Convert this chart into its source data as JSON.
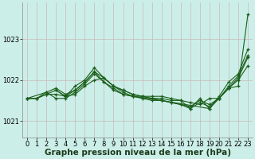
{
  "background_color": "#cceee8",
  "plot_bg_color": "#cceee8",
  "grid_color_major": "#c8b8b8",
  "line_color": "#1a5e1a",
  "xlabel": "Graphe pression niveau de la mer (hPa)",
  "xlabel_fontsize": 7.5,
  "tick_fontsize": 6,
  "ylim": [
    1020.6,
    1023.9
  ],
  "xlim": [
    -0.5,
    23.5
  ],
  "yticks": [
    1021,
    1022,
    1023
  ],
  "xticks": [
    0,
    1,
    2,
    3,
    4,
    5,
    6,
    7,
    8,
    9,
    10,
    11,
    12,
    13,
    14,
    15,
    16,
    17,
    18,
    19,
    20,
    21,
    22,
    23
  ],
  "series": [
    {
      "x": [
        0,
        1,
        2,
        3,
        4,
        5,
        6,
        7,
        8,
        9,
        10,
        11,
        12,
        13,
        14,
        15,
        16,
        17,
        18,
        19,
        20,
        21,
        22,
        23
      ],
      "y": [
        1021.55,
        1021.55,
        1021.65,
        1021.65,
        1021.6,
        1021.65,
        1021.85,
        1022.0,
        1022.05,
        1021.85,
        1021.75,
        1021.65,
        1021.6,
        1021.55,
        1021.55,
        1021.5,
        1021.5,
        1021.45,
        1021.4,
        1021.55,
        1021.55,
        1021.8,
        1021.85,
        1023.6
      ],
      "markers": [
        0,
        1,
        2,
        3,
        4,
        5,
        6,
        7,
        8,
        9,
        10,
        11,
        12,
        13,
        14,
        15,
        16,
        17,
        18,
        19,
        20,
        21,
        22,
        23
      ]
    },
    {
      "x": [
        0,
        1,
        2,
        3,
        4,
        5,
        6,
        7,
        8,
        9,
        10,
        11,
        12,
        13,
        14,
        15,
        16,
        17,
        18,
        19,
        20,
        21,
        22,
        23
      ],
      "y": [
        1021.55,
        1021.55,
        1021.65,
        1021.75,
        1021.6,
        1021.85,
        1022.0,
        1022.3,
        1022.05,
        1021.85,
        1021.7,
        1021.6,
        1021.55,
        1021.5,
        1021.5,
        1021.45,
        1021.4,
        1021.35,
        1021.5,
        1021.4,
        1021.55,
        1021.8,
        1022.0,
        1022.35
      ],
      "markers": [
        0,
        1,
        2,
        3,
        4,
        5,
        6,
        7,
        8,
        9,
        10,
        11,
        12,
        13,
        14,
        15,
        16,
        17,
        18,
        19,
        20,
        21,
        22,
        23
      ]
    },
    {
      "x": [
        0,
        1,
        2,
        3,
        4,
        5,
        6,
        7,
        8,
        9,
        10,
        11,
        12,
        13,
        14,
        15,
        16,
        17,
        18,
        19,
        20,
        21,
        22,
        23
      ],
      "y": [
        1021.55,
        1021.55,
        1021.7,
        1021.8,
        1021.65,
        1021.75,
        1021.95,
        1022.2,
        1022.05,
        1021.85,
        1021.75,
        1021.65,
        1021.6,
        1021.55,
        1021.5,
        1021.45,
        1021.4,
        1021.3,
        1021.45,
        1021.35,
        1021.55,
        1021.8,
        1022.05,
        1022.55
      ],
      "markers": [
        0,
        1,
        2,
        3,
        4,
        5,
        6,
        7,
        8,
        9,
        10,
        11,
        12,
        13,
        14,
        15,
        16,
        17,
        18,
        19,
        20,
        21,
        22,
        23
      ]
    },
    {
      "x": [
        0,
        2,
        3,
        4,
        5,
        6,
        7,
        8,
        9,
        10,
        11,
        14,
        19,
        20,
        21,
        22,
        23
      ],
      "y": [
        1021.55,
        1021.7,
        1021.55,
        1021.55,
        1021.7,
        1021.9,
        1022.15,
        1021.95,
        1021.75,
        1021.65,
        1021.6,
        1021.5,
        1021.3,
        1021.6,
        1021.95,
        1022.15,
        1022.75
      ],
      "markers": [
        0,
        2,
        3,
        4,
        5,
        6,
        7,
        8,
        9,
        10,
        11,
        14,
        19,
        20,
        21,
        22,
        23
      ]
    },
    {
      "x": [
        3,
        4,
        5,
        6,
        7,
        8,
        9,
        10,
        11,
        12,
        13,
        14,
        15,
        16,
        17,
        18,
        19,
        20,
        21,
        22,
        23
      ],
      "y": [
        1021.75,
        1021.6,
        1021.75,
        1021.95,
        1022.2,
        1021.95,
        1021.8,
        1021.65,
        1021.6,
        1021.6,
        1021.6,
        1021.6,
        1021.55,
        1021.5,
        1021.3,
        1021.55,
        1021.3,
        1021.55,
        1021.85,
        1022.1,
        1022.6
      ],
      "markers": [
        3,
        4,
        5,
        6,
        7,
        8,
        9,
        10,
        11,
        12,
        13,
        14,
        15,
        16,
        17,
        18,
        19,
        20,
        21,
        22,
        23
      ]
    }
  ]
}
